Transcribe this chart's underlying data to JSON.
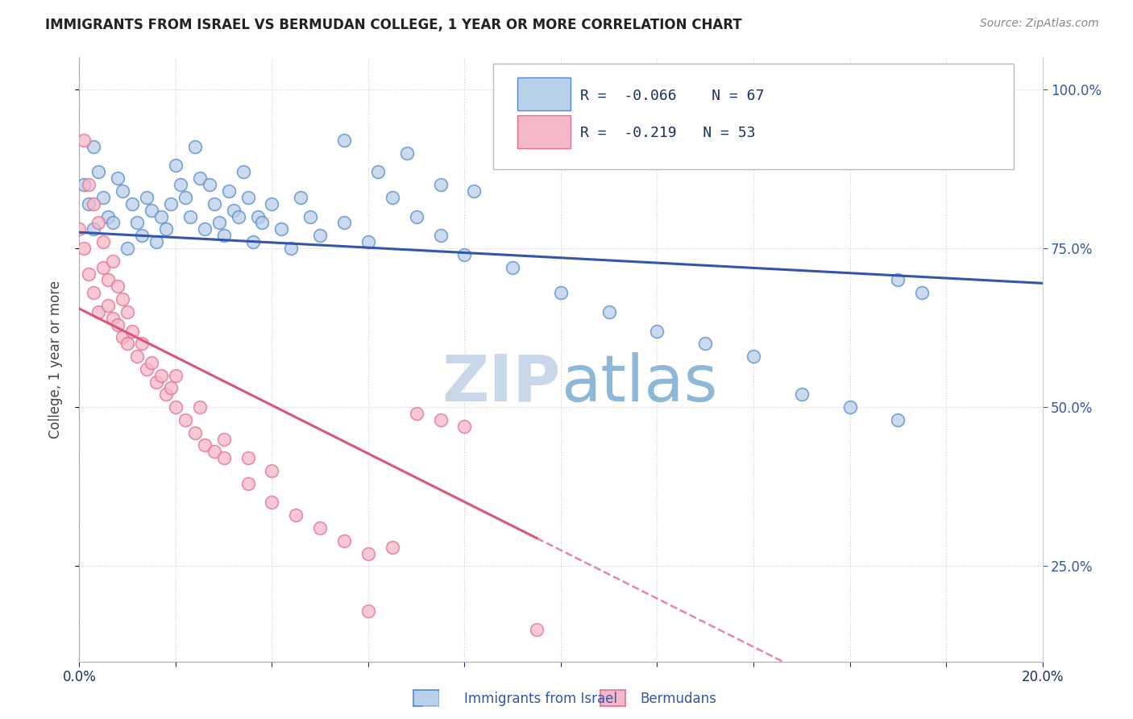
{
  "title": "IMMIGRANTS FROM ISRAEL VS BERMUDAN COLLEGE, 1 YEAR OR MORE CORRELATION CHART",
  "source": "Source: ZipAtlas.com",
  "ylabel": "College, 1 year or more",
  "x_label_blue": "Immigrants from Israel",
  "x_label_pink": "Bermudans",
  "xlim": [
    0.0,
    0.2
  ],
  "ylim": [
    0.1,
    1.05
  ],
  "legend_R_blue": "-0.066",
  "legend_N_blue": "67",
  "legend_R_pink": "-0.219",
  "legend_N_pink": "53",
  "blue_fill": "#b8d0e8",
  "pink_fill": "#f5b8c8",
  "blue_edge": "#5588cc",
  "pink_edge": "#e07090",
  "blue_line_color": "#3355aa",
  "pink_line_color": "#dd5577",
  "text_color_dark": "#1a3060",
  "text_color_r": "#cc2244",
  "text_color_n": "#1a3060",
  "grid_color": "#cccccc",
  "right_tick_color": "#3355aa",
  "watermark_zip": "#c8d8e8",
  "watermark_atlas": "#8db8d8"
}
